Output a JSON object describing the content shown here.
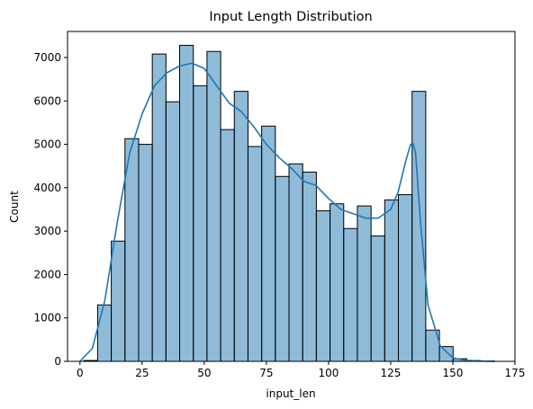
{
  "chart_data": {
    "type": "bar",
    "title": "Input Length Distribution",
    "xlabel": "input_len",
    "ylabel": "Count",
    "xlim": [
      -5,
      175
    ],
    "ylim": [
      0,
      7600
    ],
    "x_ticks": [
      0,
      25,
      50,
      75,
      100,
      125,
      150,
      175
    ],
    "y_ticks": [
      0,
      1000,
      2000,
      3000,
      4000,
      5000,
      6000,
      7000
    ],
    "bins": {
      "edges": [
        1.6,
        7.1,
        12.6,
        18.1,
        23.6,
        29.1,
        34.6,
        40.1,
        45.6,
        51.1,
        56.6,
        62.1,
        67.6,
        73.1,
        78.6,
        84.1,
        89.6,
        95.1,
        100.6,
        106.1,
        111.6,
        117.1,
        122.6,
        128.1,
        133.6,
        139.1,
        144.6,
        150.1,
        155.6,
        161.1,
        166.6
      ],
      "counts": [
        20,
        1300,
        2770,
        5130,
        5000,
        7080,
        5980,
        7280,
        6350,
        7140,
        5340,
        6220,
        4950,
        5420,
        4260,
        4550,
        4360,
        3470,
        3630,
        3060,
        3580,
        2890,
        3720,
        3840,
        6220,
        720,
        340,
        60,
        20,
        10
      ]
    },
    "kde": {
      "x": [
        0,
        5,
        10,
        15,
        20,
        25,
        30,
        35,
        40,
        45,
        50,
        55,
        60,
        65,
        70,
        75,
        80,
        85,
        90,
        95,
        100,
        105,
        110,
        115,
        120,
        125,
        128,
        131,
        133,
        134,
        135,
        137,
        140,
        145,
        150,
        155,
        160,
        167
      ],
      "y": [
        0,
        300,
        1400,
        3200,
        4800,
        5700,
        6350,
        6650,
        6800,
        6870,
        6750,
        6350,
        5950,
        5750,
        5400,
        5000,
        4700,
        4450,
        4150,
        4050,
        3750,
        3500,
        3400,
        3300,
        3300,
        3500,
        3900,
        4600,
        5000,
        5020,
        4800,
        3200,
        1300,
        350,
        80,
        25,
        10,
        0
      ]
    },
    "bar_color": "#1f77b4",
    "bar_alpha": 0.5,
    "line_color": "#1f77b4",
    "grid": false,
    "legend": "none"
  }
}
